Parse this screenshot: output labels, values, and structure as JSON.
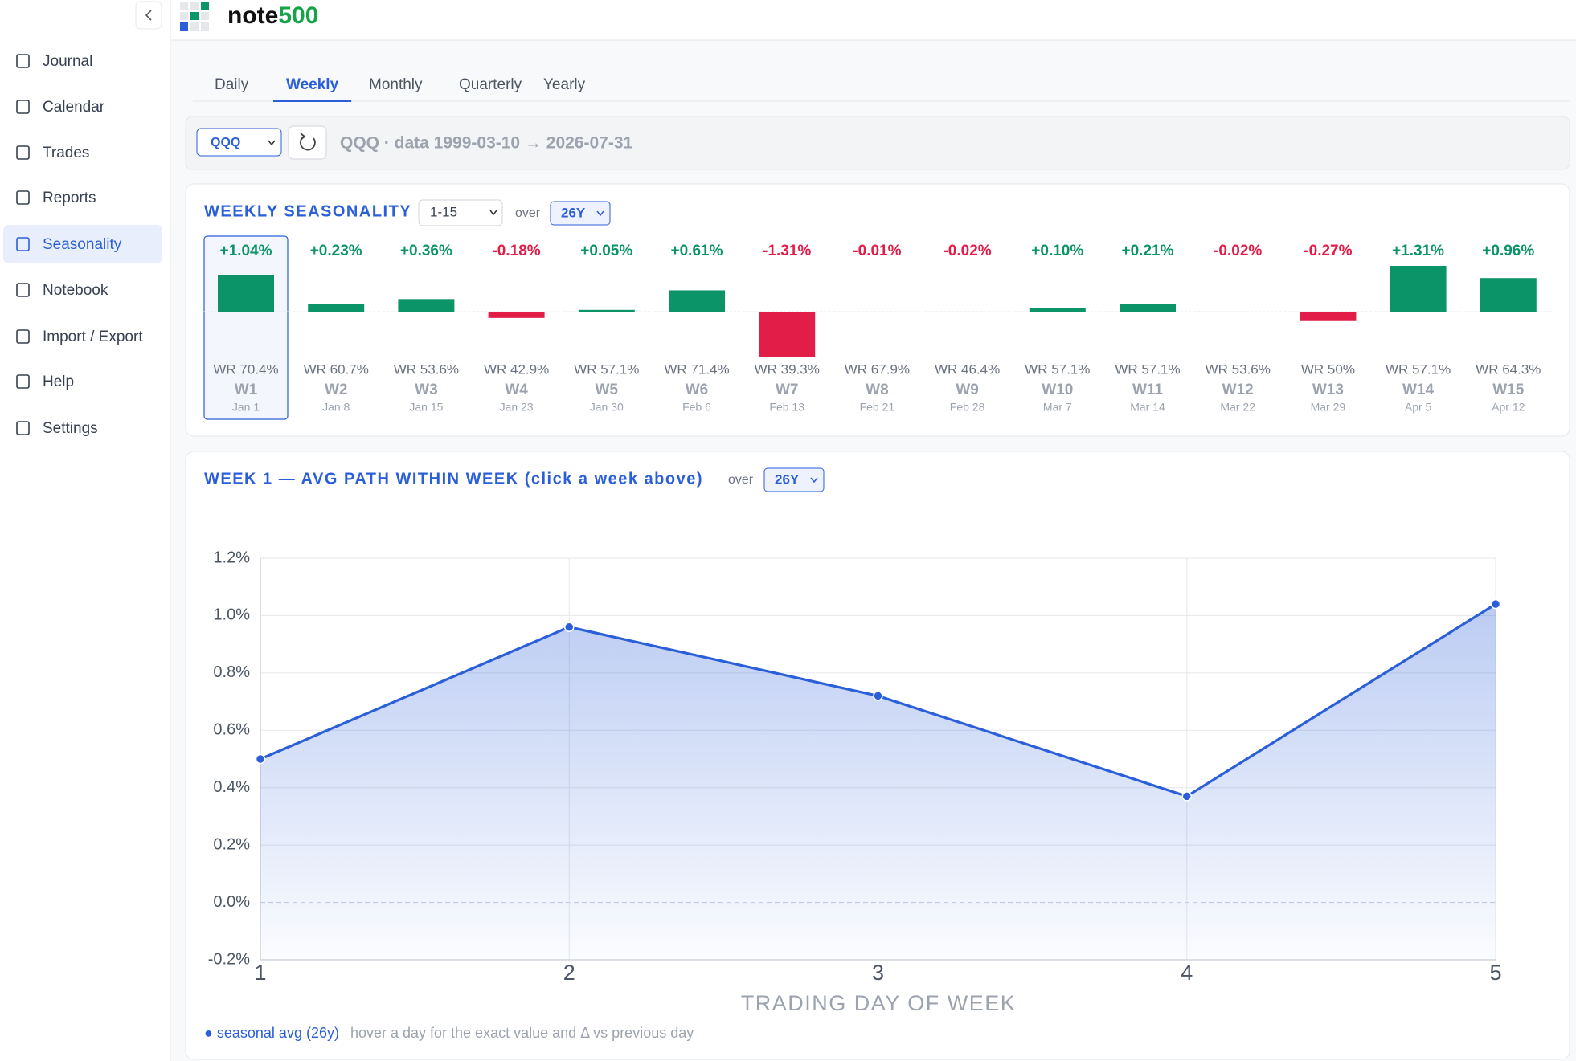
{
  "brand": {
    "name": "note",
    "accent": "500"
  },
  "nav": [
    "Journal",
    "Calendar",
    "Trades",
    "Reports",
    "Seasonality",
    "Notebook",
    "Import / Export",
    "Help",
    "Settings"
  ],
  "nav_active": 4,
  "tabs": [
    "Daily",
    "Weekly",
    "Monthly",
    "Quarterly",
    "Yearly"
  ],
  "tab_active": 1,
  "toolbar": {
    "symbol": "QQQ",
    "info": "QQQ · data 1999-03-10 → 2026-07-31"
  },
  "weeks": {
    "title": "WEEKLY SEASONALITY",
    "range": "1-15",
    "over": "over",
    "span": "26Y",
    "selected": 0,
    "cards": [
      {
        "value": 1.04,
        "label": "+1.04%",
        "wr": "WR 70.4%",
        "week": "W1",
        "date": "Jan 1"
      },
      {
        "value": 0.23,
        "label": "+0.23%",
        "wr": "WR 60.7%",
        "week": "W2",
        "date": "Jan 8"
      },
      {
        "value": 0.36,
        "label": "+0.36%",
        "wr": "WR 53.6%",
        "week": "W3",
        "date": "Jan 15"
      },
      {
        "value": -0.18,
        "label": "-0.18%",
        "wr": "WR 42.9%",
        "week": "W4",
        "date": "Jan 23"
      },
      {
        "value": 0.05,
        "label": "+0.05%",
        "wr": "WR 57.1%",
        "week": "W5",
        "date": "Jan 30"
      },
      {
        "value": 0.61,
        "label": "+0.61%",
        "wr": "WR 71.4%",
        "week": "W6",
        "date": "Feb 6"
      },
      {
        "value": -1.31,
        "label": "-1.31%",
        "wr": "WR 39.3%",
        "week": "W7",
        "date": "Feb 13"
      },
      {
        "value": -0.01,
        "label": "-0.01%",
        "wr": "WR 67.9%",
        "week": "W8",
        "date": "Feb 21"
      },
      {
        "value": -0.02,
        "label": "-0.02%",
        "wr": "WR 46.4%",
        "week": "W9",
        "date": "Feb 28"
      },
      {
        "value": 0.1,
        "label": "+0.10%",
        "wr": "WR 57.1%",
        "week": "W10",
        "date": "Mar 7"
      },
      {
        "value": 0.21,
        "label": "+0.21%",
        "wr": "WR 57.1%",
        "week": "W11",
        "date": "Mar 14"
      },
      {
        "value": -0.02,
        "label": "-0.02%",
        "wr": "WR 53.6%",
        "week": "W12",
        "date": "Mar 22"
      },
      {
        "value": -0.27,
        "label": "-0.27%",
        "wr": "WR 50%",
        "week": "W13",
        "date": "Mar 29"
      },
      {
        "value": 1.31,
        "label": "+1.31%",
        "wr": "WR 57.1%",
        "week": "W14",
        "date": "Apr 5"
      },
      {
        "value": 0.96,
        "label": "+0.96%",
        "wr": "WR 64.3%",
        "week": "W15",
        "date": "Apr 12"
      }
    ],
    "pos_color": "#0b9467",
    "neg_color": "#e11d48"
  },
  "chart_data": {
    "type": "line",
    "title": "WEEK 1 — AVG PATH WITHIN WEEK (click a week above)",
    "over": "over",
    "span": "26Y",
    "x": [
      1,
      2,
      3,
      4,
      5
    ],
    "series": [
      {
        "name": "seasonal avg (26y)",
        "color": "#2b5fd9",
        "values": [
          0.5,
          0.96,
          0.72,
          0.37,
          1.04
        ]
      }
    ],
    "xlim": [
      1,
      5
    ],
    "xticks": [
      1,
      2,
      3,
      4,
      5
    ],
    "ylim": [
      -0.2,
      1.2
    ],
    "yticks": [
      {
        "value": -0.2,
        "label": "-0.2%"
      },
      {
        "value": 0,
        "label": "0.0%"
      },
      {
        "value": 0.2,
        "label": "0.2%"
      },
      {
        "value": 0.4,
        "label": "0.4%"
      },
      {
        "value": 0.6,
        "label": "0.6%"
      },
      {
        "value": 0.8,
        "label": "0.8%"
      },
      {
        "value": 1.0,
        "label": "1.0%"
      },
      {
        "value": 1.2,
        "label": "1.2%"
      }
    ],
    "xlabel": "TRADING DAY OF WEEK",
    "grid": true,
    "note": "hover a day for the exact value and Δ vs previous day"
  }
}
